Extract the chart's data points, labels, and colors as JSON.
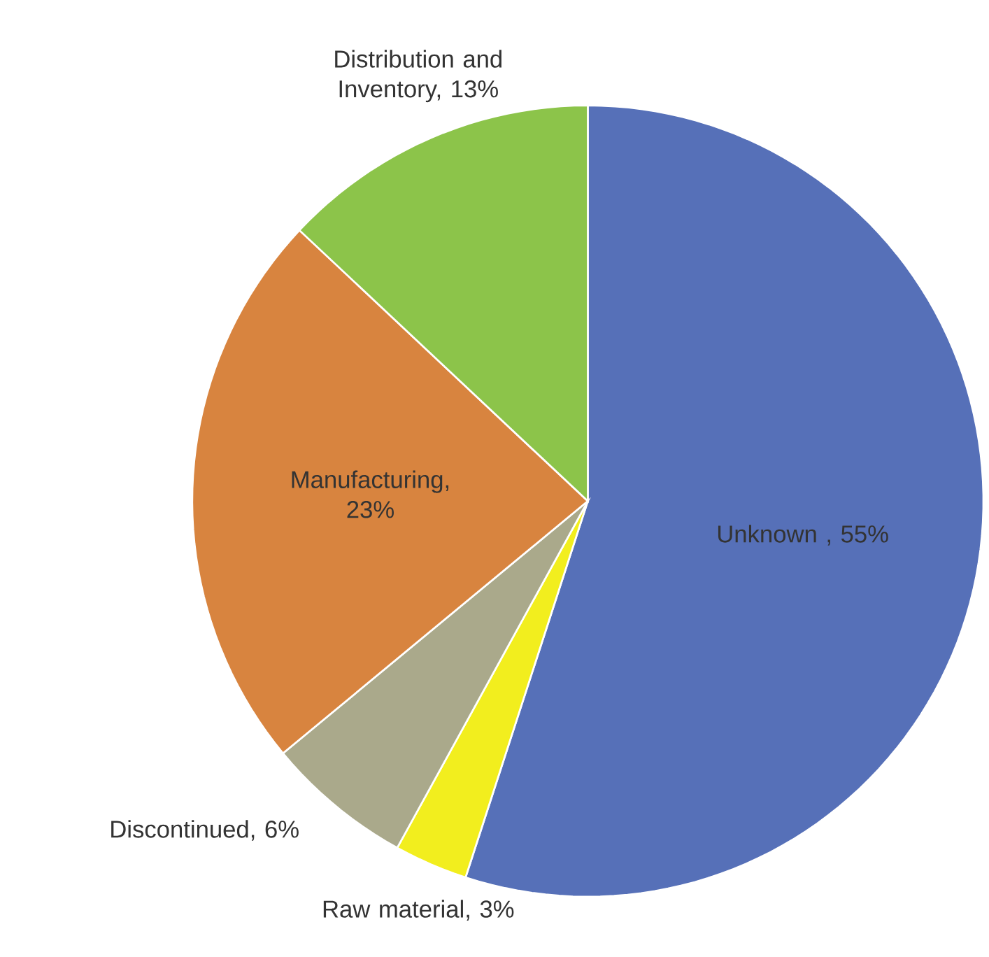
{
  "chart_data": {
    "type": "pie",
    "categories": [
      "Unknown , 55%",
      "Raw material, 3%",
      "Discontinued, 6%",
      "Manufacturing, 23%",
      "Distribution and Inventory, 13%"
    ],
    "values": [
      55,
      3,
      6,
      23,
      13
    ],
    "colors": [
      "#5670b8",
      "#f2ee1e",
      "#aaa98b",
      "#d8843f",
      "#8cc44a"
    ]
  }
}
